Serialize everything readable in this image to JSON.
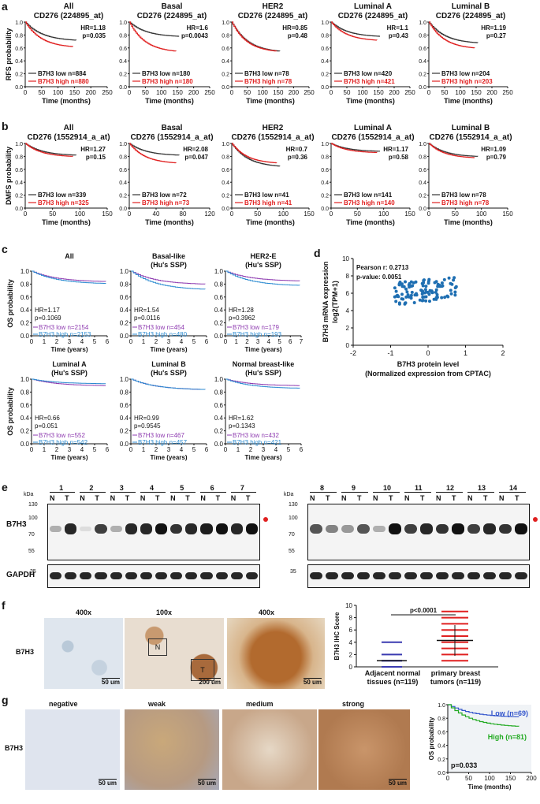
{
  "panel_letters": [
    "a",
    "b",
    "c",
    "d",
    "e",
    "f",
    "g"
  ],
  "panel_a": {
    "ylabel": "RFS probability",
    "xlabel": "Time (months)",
    "xticks": [
      "0",
      "50",
      "100",
      "150",
      "200",
      "250"
    ],
    "yticks": [
      "0.0",
      "0.2",
      "0.4",
      "0.6",
      "0.8",
      "1.0"
    ],
    "plots": [
      {
        "title1": "All",
        "title2": "CD276 (224895_at)",
        "hr": "HR=1.18",
        "p": "p=0.035",
        "low": "B7H3 low  n=884",
        "high": "B7H3 high n=880"
      },
      {
        "title1": "Basal",
        "title2": "CD276 (224895_at)",
        "hr": "HR=1.6",
        "p": "p=0.0043",
        "low": "B7H3 low  n=180",
        "high": "B7H3 high n=180"
      },
      {
        "title1": "HER2",
        "title2": "CD276 (224895_at)",
        "hr": "HR=0.85",
        "p": "p=0.48",
        "low": "B7H3 low  n=78",
        "high": "B7H3 high n=78"
      },
      {
        "title1": "Luminal A",
        "title2": "CD276 (224895_at)",
        "hr": "HR=1.1",
        "p": "p=0.43",
        "low": "B7H3 low  n=420",
        "high": "B7H3 high n=421"
      },
      {
        "title1": "Luminal B",
        "title2": "CD276 (224895_at)",
        "hr": "HR=1.19",
        "p": "p=0.27",
        "low": "B7H3 low  n=204",
        "high": "B7H3 high n=203"
      }
    ]
  },
  "panel_b": {
    "ylabel": "DMFS probability",
    "xlabel": "Time (months)",
    "plots": [
      {
        "title1": "All",
        "title2": "CD276 (1552914_a_at)",
        "hr": "HR=1.27",
        "p": "p=0.15",
        "low": "B7H3 low  n=339",
        "high": "B7H3 high n=325",
        "xticks": [
          "0",
          "50",
          "100",
          "150"
        ]
      },
      {
        "title1": "Basal",
        "title2": "CD276 (1552914_a_at)",
        "hr": "HR=2.08",
        "p": "p=0.047",
        "low": "B7H3 low  n=72",
        "high": "B7H3 high n=73",
        "xticks": [
          "0",
          "40",
          "80",
          "120"
        ]
      },
      {
        "title1": "HER2",
        "title2": "CD276 (1552914_a_at)",
        "hr": "HR=0.7",
        "p": "p=0.36",
        "low": "B7H3 low  n=41",
        "high": "B7H3 high n=41",
        "xticks": [
          "0",
          "50",
          "100",
          "150"
        ]
      },
      {
        "title1": "Luminal A",
        "title2": "CD276 (1552914_a_at)",
        "hr": "HR=1.17",
        "p": "p=0.58",
        "low": "B7H3 low  n=141",
        "high": "B7H3 high n=140",
        "xticks": [
          "0",
          "50",
          "100",
          "150"
        ]
      },
      {
        "title1": "Luminal B",
        "title2": "CD276 (1552914_a_at)",
        "hr": "HR=1.09",
        "p": "p=0.79",
        "low": "B7H3 low  n=78",
        "high": "B7H3 high n=78",
        "xticks": [
          "0",
          "50",
          "100",
          "150"
        ]
      }
    ]
  },
  "panel_c": {
    "ylabel": "OS probability",
    "xlabel": "Time (years)",
    "yticks": [
      "0.0",
      "0.2",
      "0.4",
      "0.6",
      "0.8",
      "1.0"
    ],
    "plots": [
      {
        "title1": "All",
        "title2": "",
        "hr": "HR=1.17",
        "p": "p=0.1069",
        "low": "B7H3 low    n=2154",
        "high": "B7H3 high   n=2153",
        "xticks": [
          "0",
          "1",
          "2",
          "3",
          "4",
          "5",
          "6"
        ]
      },
      {
        "title1": "Basal-like",
        "title2": "(Hu's SSP)",
        "hr": "HR=1.54",
        "p": "p=0.0116",
        "low": "B7H3 low    n=454",
        "high": "B7H3 high   n=480",
        "xticks": [
          "0",
          "1",
          "2",
          "3",
          "4",
          "5",
          "6"
        ]
      },
      {
        "title1": "HER2-E",
        "title2": "(Hu's SSP)",
        "hr": "HR=1.28",
        "p": "p=0.3962",
        "low": "B7H3 low    n=179",
        "high": "B7H3 high   n=193",
        "xticks": [
          "0",
          "1",
          "2",
          "3",
          "4",
          "5",
          "6",
          "7"
        ]
      },
      {
        "title1": "Luminal A",
        "title2": "(Hu's SSP)",
        "hr": "HR=0.66",
        "p": "p=0.051",
        "low": "B7H3 low    n=552",
        "high": "B7H3 high   n=542",
        "xticks": [
          "0",
          "1",
          "2",
          "3",
          "4",
          "5",
          "6"
        ]
      },
      {
        "title1": "Luminal B",
        "title2": "(Hu's SSP)",
        "hr": "HR=0.99",
        "p": "p=0.9545",
        "low": "B7H3 low    n=467",
        "high": "B7H3 high   n=457",
        "xticks": [
          "0",
          "1",
          "2",
          "3",
          "4",
          "5",
          "6"
        ]
      },
      {
        "title1": "Normal breast-like",
        "title2": "(Hu's SSP)",
        "hr": "HR=1.62",
        "p": "p=0.1343",
        "low": "B7H3 low    n=432",
        "high": "B7H3 high   n=421",
        "xticks": [
          "0",
          "1",
          "2",
          "3",
          "4",
          "5",
          "6"
        ]
      }
    ]
  },
  "panel_d": {
    "pearson": "Pearson r:  0.2713",
    "pvalue": "p-value:  0.0051",
    "ylabel1": "B7H3 mRNA expression",
    "ylabel2": "log2(TPM+1)",
    "xlabel1": "B7H3 protein level",
    "xlabel2": "(Normalized expression from CPTAC)",
    "xticks": [
      "-2",
      "-1",
      "0",
      "1",
      "2"
    ],
    "yticks": [
      "0",
      "2",
      "4",
      "6",
      "8",
      "10"
    ]
  },
  "panel_e": {
    "kda": "kDa",
    "lanes_left": [
      "1",
      "2",
      "3",
      "4",
      "5",
      "6",
      "7"
    ],
    "lanes_right": [
      "8",
      "9",
      "10",
      "11",
      "12",
      "13",
      "14"
    ],
    "nt": [
      "N",
      "T"
    ],
    "markers_top": [
      "130",
      "100",
      "70",
      "55"
    ],
    "markers_bottom": [
      "35"
    ],
    "b7h3": "B7H3",
    "gapdh": "GAPDH"
  },
  "panel_f": {
    "mag": [
      "400x",
      "100x",
      "400x"
    ],
    "label": "B7H3",
    "scale": [
      "50 um",
      "200 um",
      "50 um"
    ],
    "boxN": "N",
    "boxT": "T",
    "ylabel": "B7H3  IHC Score",
    "yticks": [
      "0",
      "2",
      "4",
      "6",
      "8",
      "10"
    ],
    "pval": "p<0.0001",
    "group1a": "Adjacent normal",
    "group1b": "tissues (n=119)",
    "group2a": "primary breast",
    "group2b": "tumors (n=119)"
  },
  "panel_g": {
    "grades": [
      "negative",
      "weak",
      "medium",
      "strong"
    ],
    "label": "B7H3",
    "scale": [
      "50 um",
      "50 um",
      "50 um"
    ],
    "ylabel": "OS probability",
    "xlabel": "Time (months)",
    "low": "Low (n=69)",
    "high": "High (n=81)",
    "p": "p=0.033",
    "xticks": [
      "0",
      "50",
      "100",
      "150",
      "200"
    ],
    "yticks": [
      "0.0",
      "0.2",
      "0.4",
      "0.6",
      "0.8",
      "1.0"
    ]
  },
  "colors": {
    "low_black": "#333333",
    "high_red": "#e02020",
    "low_purple": "#8e3bb0",
    "high_blue": "#2a8ad0",
    "scatter": "#1f6fb2",
    "g_low": "#3355cc",
    "g_high": "#22aa22"
  }
}
